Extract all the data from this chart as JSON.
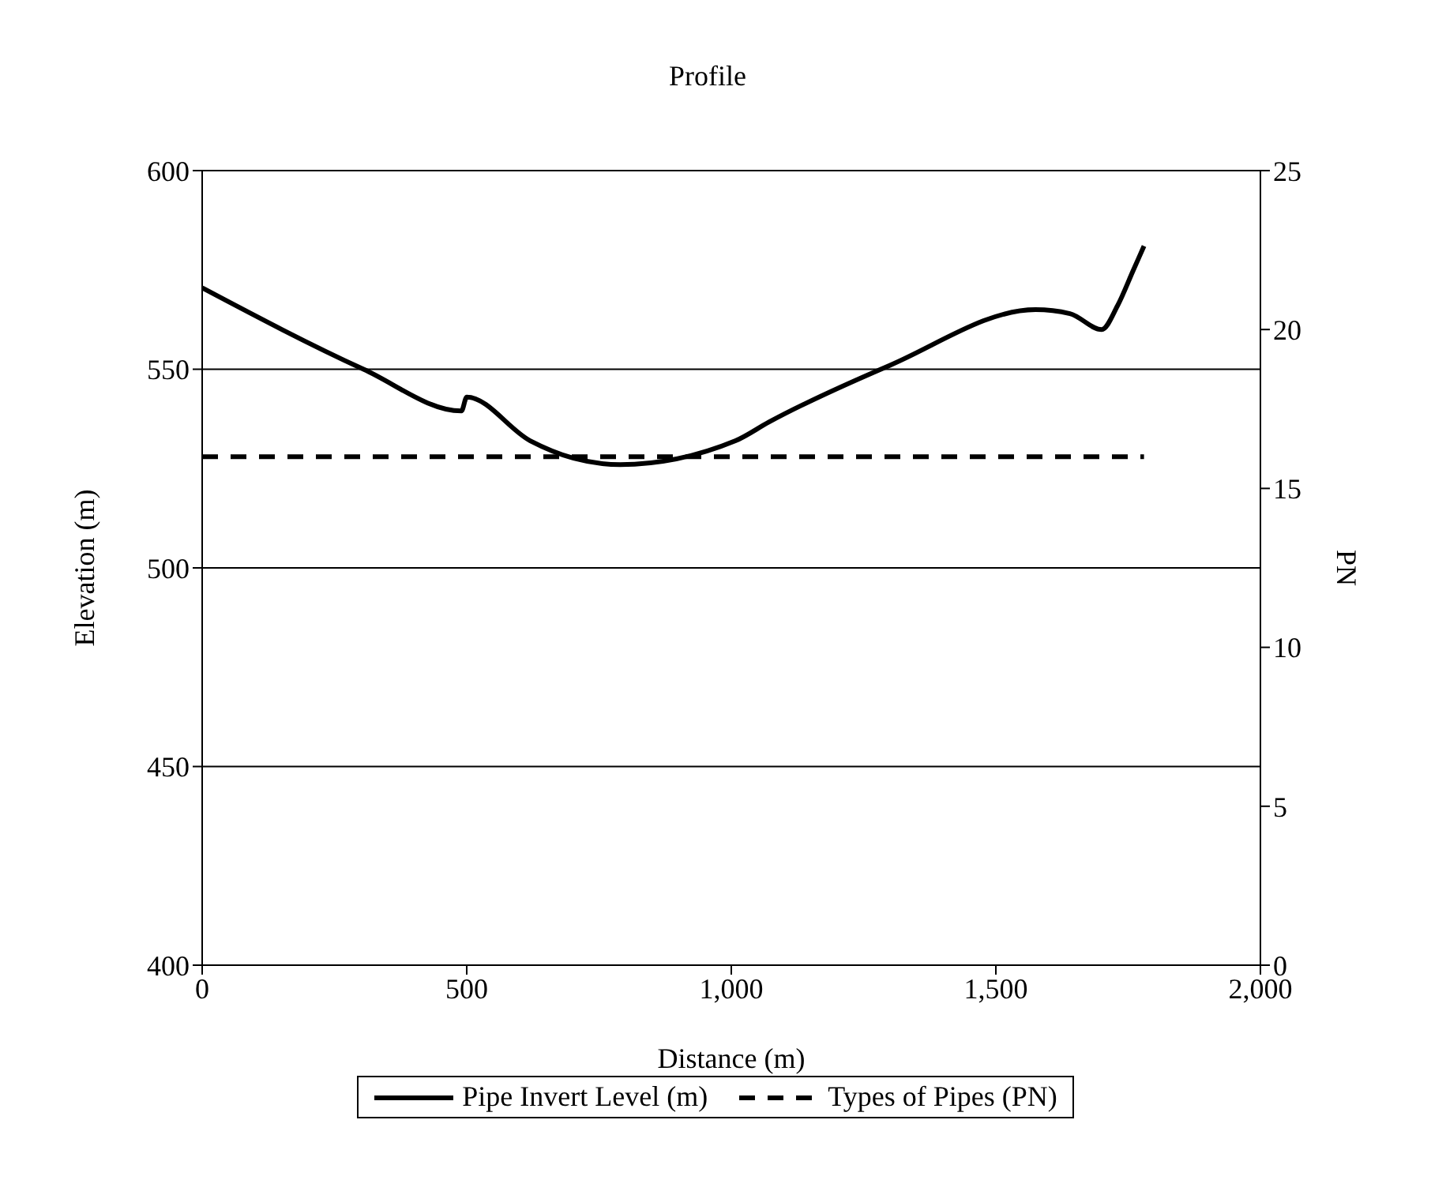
{
  "chart_data": {
    "type": "line",
    "title": "Profile",
    "xlabel": "Distance (m)",
    "ylabel": "Elevation (m)",
    "y2label": "PN",
    "xlim": [
      0,
      2000
    ],
    "xticks": [
      0,
      500,
      {
        "value": 1000,
        "label": "1,000"
      },
      {
        "value": 1500,
        "label": "1,500"
      },
      {
        "value": 2000,
        "label": "2,000"
      }
    ],
    "ylim": [
      400,
      600
    ],
    "yticks": [
      400,
      450,
      500,
      550,
      600
    ],
    "y2lim": [
      0,
      25
    ],
    "y2ticks": [
      0,
      5,
      10,
      15,
      20,
      25
    ],
    "grid": "y",
    "legend": "bottom",
    "marker": "none",
    "series": [
      {
        "name": "Pipe Invert Level (m)",
        "color": "#000000",
        "line_style": "solid",
        "x": [
          0,
          305,
          490,
          500,
          620,
          702,
          790,
          1008,
          1071,
          1300,
          1575,
          1640,
          1700,
          1730,
          1760,
          1780
        ],
        "values": [
          570.5,
          550,
          539.5,
          543,
          532,
          527.6,
          526,
          532,
          536.7,
          551,
          565,
          564,
          560,
          566,
          575,
          581
        ]
      },
      {
        "name": "Types of Pipes (PN)",
        "color": "#000000",
        "line_style": "dashed",
        "axis": "y2",
        "x": [
          0,
          1780
        ],
        "values": [
          16,
          16
        ]
      }
    ]
  }
}
